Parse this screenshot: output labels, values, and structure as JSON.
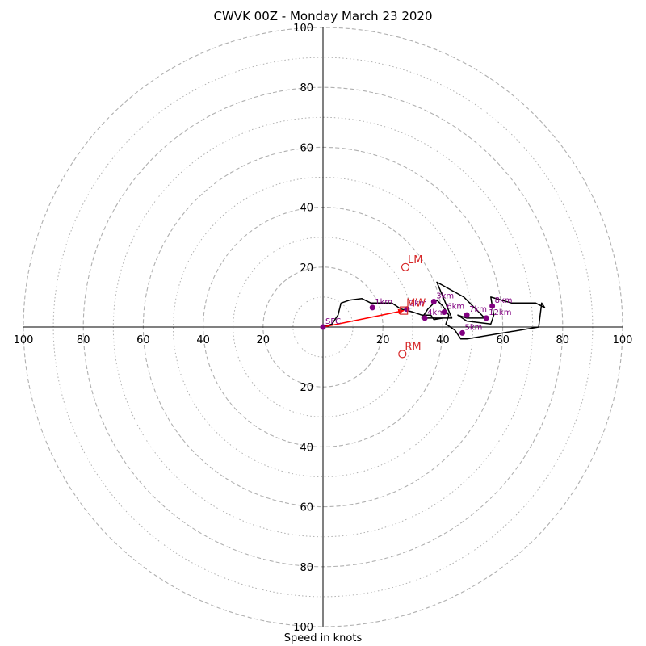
{
  "chart_data": {
    "type": "hodograph",
    "title": "CWVK 00Z - Monday March 23 2020",
    "xlabel": "Speed in knots",
    "rlim": [
      0,
      100
    ],
    "ring_major": [
      20,
      40,
      60,
      80,
      100
    ],
    "ring_minor": [
      10,
      30,
      50,
      70,
      90
    ],
    "tick_labels": [
      "20",
      "40",
      "60",
      "80",
      "100"
    ],
    "grid": true,
    "hodograph_line": [
      [
        0,
        0
      ],
      [
        3,
        1
      ],
      [
        5,
        4
      ],
      [
        6,
        8
      ],
      [
        9,
        9
      ],
      [
        13,
        9.5
      ],
      [
        16,
        8
      ],
      [
        20,
        8
      ],
      [
        23,
        8
      ],
      [
        26,
        6
      ],
      [
        30,
        5
      ],
      [
        33,
        4
      ],
      [
        36,
        4
      ],
      [
        37,
        2.5
      ],
      [
        40,
        3
      ],
      [
        43,
        3
      ],
      [
        38,
        15
      ],
      [
        47,
        10
      ],
      [
        51,
        6
      ],
      [
        54,
        3
      ],
      [
        48,
        3
      ],
      [
        45,
        4
      ],
      [
        48,
        2
      ],
      [
        56,
        1
      ],
      [
        57,
        4
      ],
      [
        56,
        10
      ],
      [
        63,
        8
      ],
      [
        71,
        8
      ],
      [
        74,
        6.5
      ],
      [
        73,
        8
      ],
      [
        72,
        0
      ],
      [
        48,
        -4
      ],
      [
        46,
        -4
      ],
      [
        44,
        -1
      ],
      [
        41,
        1
      ],
      [
        42,
        4
      ],
      [
        40,
        7
      ],
      [
        38,
        9
      ],
      [
        35,
        6
      ],
      [
        33,
        3
      ],
      [
        36,
        3
      ],
      [
        40,
        3
      ]
    ],
    "levels": [
      {
        "label": "SFC",
        "u": 0,
        "v": 0
      },
      {
        "label": "1km",
        "u": 16.5,
        "v": 6.5
      },
      {
        "label": "2km",
        "u": 28,
        "v": 6
      },
      {
        "label": "3km",
        "u": 37,
        "v": 8.5
      },
      {
        "label": "4km",
        "u": 34,
        "v": 3
      },
      {
        "label": "5km",
        "u": 46.5,
        "v": -2
      },
      {
        "label": "6km",
        "u": 40.5,
        "v": 5
      },
      {
        "label": "7km",
        "u": 48,
        "v": 4
      },
      {
        "label": "8km",
        "u": 56.5,
        "v": 7
      },
      {
        "label": "12km",
        "u": 54.5,
        "v": 3
      }
    ],
    "markers": [
      {
        "label": "LM",
        "u": 27.5,
        "v": 20,
        "shape": "circle"
      },
      {
        "label": "RM",
        "u": 26.5,
        "v": -9,
        "shape": "circle"
      },
      {
        "label": "MW",
        "u": 27,
        "v": 5.5,
        "shape": "square"
      }
    ],
    "shear_arrow": {
      "from": [
        0,
        0
      ],
      "to": [
        27,
        5.5
      ]
    },
    "colors": {
      "hodograph": "#000000",
      "levels": "#800080",
      "markers": "#d62728",
      "arrow": "#ff0000",
      "grid": "#b0b0b0"
    }
  }
}
